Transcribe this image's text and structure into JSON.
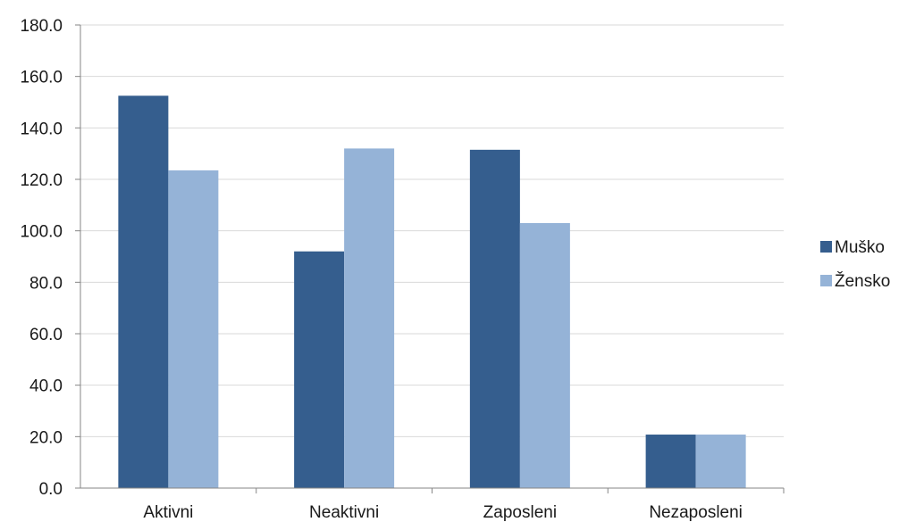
{
  "chart_data": {
    "type": "bar",
    "categories": [
      "Aktivni",
      "Neaktivni",
      "Zaposleni",
      "Nezaposleni"
    ],
    "series": [
      {
        "name": "Muško",
        "values": [
          152.5,
          92.0,
          131.5,
          20.8
        ],
        "color": "#355E8E"
      },
      {
        "name": "Žensko",
        "values": [
          123.5,
          132.0,
          103.0,
          20.8
        ],
        "color": "#95B3D7"
      }
    ],
    "ylim": [
      0,
      180
    ],
    "yticks": [
      "0.0",
      "20.0",
      "40.0",
      "60.0",
      "80.0",
      "100.0",
      "120.0",
      "140.0",
      "160.0",
      "180.0"
    ],
    "ytick_values": [
      0,
      20,
      40,
      60,
      80,
      100,
      120,
      140,
      160,
      180
    ],
    "grid": true,
    "legend_position": "right",
    "title": "",
    "xlabel": "",
    "ylabel": ""
  }
}
